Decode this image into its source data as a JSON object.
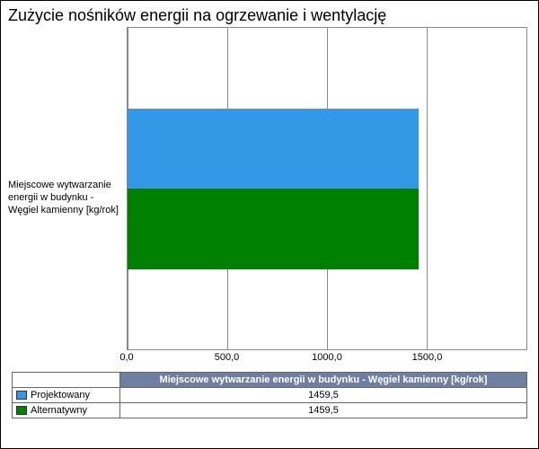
{
  "title": "Zużycie nośników energii na ogrzewanie i wentylację",
  "chart": {
    "type": "bar-horizontal-grouped",
    "category_label": "Miejscowe wytwarzanie energii w budynku - Węgiel kamienny [kg/rok]",
    "series": [
      {
        "name": "Projektowany",
        "value": 1459.5,
        "value_text": "1459,5",
        "color": "#3399e6"
      },
      {
        "name": "Alternatywny",
        "value": 1459.5,
        "value_text": "1459,5",
        "color": "#008000"
      }
    ],
    "x_axis": {
      "min": 0,
      "max": 2000,
      "ticks": [
        0,
        500,
        1000,
        1500
      ],
      "tick_labels": [
        "0,0",
        "500,0",
        "1000,0",
        "1500,0"
      ],
      "grid_positions_pct": [
        0,
        25,
        50,
        75,
        100
      ]
    },
    "plot_background": "#ffffff",
    "grid_color": "#888888",
    "title_fontsize": 18,
    "label_fontsize": 11
  },
  "table": {
    "header_bg": "#6f7fa0",
    "header_fg": "#ffffff",
    "column_header": "Miejscowe wytwarzanie energii w budynku - Węgiel kamienny [kg/rok]"
  }
}
